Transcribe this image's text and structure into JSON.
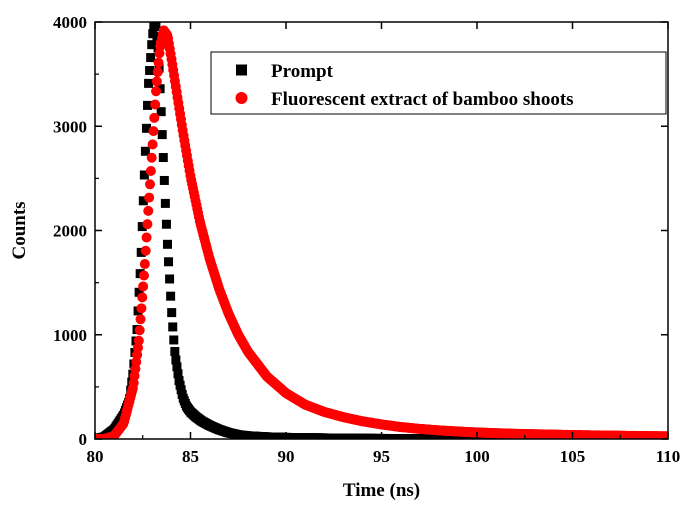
{
  "chart_data": {
    "type": "scatter",
    "title": "",
    "xlabel": "Time (ns)",
    "ylabel": "Counts",
    "xlim": [
      80,
      110
    ],
    "ylim": [
      0,
      4000
    ],
    "x_ticks": [
      80,
      85,
      90,
      95,
      100,
      105,
      110
    ],
    "y_ticks": [
      0,
      1000,
      2000,
      3000,
      4000
    ],
    "grid": false,
    "legend_position": "top-right",
    "series": [
      {
        "name": "Prompt",
        "marker": "square",
        "color": "#000000",
        "x": [
          80.0,
          80.5,
          81.0,
          81.5,
          81.8,
          82.0,
          82.2,
          82.4,
          82.6,
          82.8,
          83.0,
          83.1,
          83.2,
          83.3,
          83.4,
          83.5,
          83.6,
          83.7,
          83.8,
          83.9,
          84.0,
          84.1,
          84.2,
          84.4,
          84.6,
          84.8,
          85.0,
          85.3,
          85.6,
          86.0,
          86.5,
          87.0,
          87.5,
          88.0,
          89.0,
          90.0,
          92.0,
          95.0,
          100.0,
          105.0,
          110.0
        ],
        "y": [
          0,
          20,
          90,
          230,
          370,
          650,
          1050,
          1700,
          2600,
          3400,
          3850,
          4000,
          3950,
          3750,
          3400,
          3000,
          2600,
          2200,
          1850,
          1550,
          1250,
          1000,
          800,
          560,
          400,
          310,
          260,
          210,
          170,
          130,
          90,
          60,
          40,
          30,
          20,
          15,
          10,
          5,
          3,
          2,
          2
        ]
      },
      {
        "name": "Fluorescent extract of bamboo shoots",
        "marker": "circle",
        "color": "#ff0000",
        "x": [
          80.0,
          80.5,
          81.0,
          81.5,
          82.0,
          82.3,
          82.6,
          82.9,
          83.2,
          83.4,
          83.6,
          83.8,
          84.0,
          84.3,
          84.6,
          85.0,
          85.5,
          86.0,
          86.5,
          87.0,
          87.5,
          88.0,
          89.0,
          90.0,
          91.0,
          92.0,
          93.0,
          94.0,
          95.0,
          96.0,
          97.0,
          98.0,
          99.0,
          100.0,
          101.0,
          102.0,
          103.0,
          104.0,
          105.0,
          106.0,
          107.0,
          108.0,
          109.0,
          110.0
        ],
        "y": [
          0,
          0,
          30,
          150,
          500,
          950,
          1650,
          2500,
          3350,
          3750,
          3920,
          3870,
          3650,
          3300,
          2950,
          2520,
          2080,
          1730,
          1440,
          1200,
          1000,
          840,
          600,
          440,
          330,
          260,
          210,
          170,
          140,
          115,
          97,
          83,
          72,
          63,
          56,
          50,
          46,
          42,
          38,
          35,
          33,
          30,
          28,
          26
        ]
      }
    ]
  }
}
